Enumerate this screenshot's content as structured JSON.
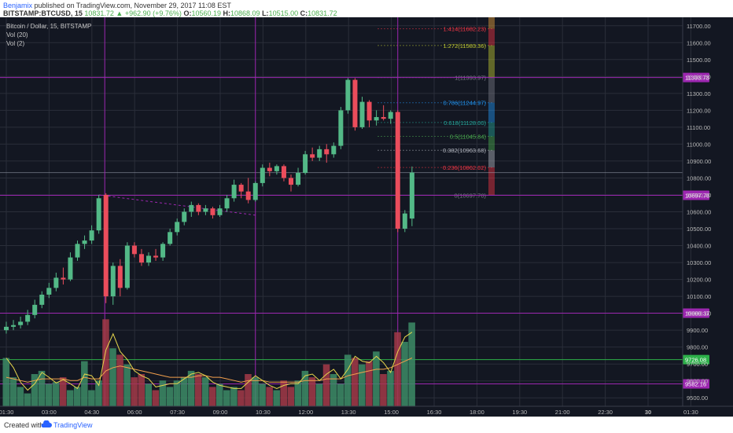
{
  "header": {
    "author": "Benjamix",
    "published": "published on TradingView.com, November 29, 2017 11:08 EST",
    "symbol": "BITSTAMP:BTCUSD, 15",
    "last": "10831.72",
    "change": "+962.90 (+9.76%)",
    "o_label": "O:",
    "o": "10560.19",
    "h_label": "H:",
    "h": "10868.09",
    "l_label": "L:",
    "l": "10515.00",
    "c_label": "C:",
    "c": "10831.72"
  },
  "legend": {
    "title": "Bitcoin / Dollar, 15, BITSTAMP",
    "vol20": "Vol (20)",
    "vol2": "Vol (2)"
  },
  "footer": {
    "created": "Created with",
    "brand": "TradingView"
  },
  "colors": {
    "background": "#131722",
    "grid": "#2a2e39",
    "up": "#53b987",
    "down": "#eb4d5c",
    "volume_up": "#3d8c66",
    "volume_down": "#a33a48",
    "purple": "#9c27b0",
    "vol_ma_yellow": "#e6d64c",
    "vol_ma_orange": "#f29f4c",
    "green_line": "#2db04a"
  },
  "chart_data": {
    "type": "candlestick",
    "price_axis": {
      "min": 9450,
      "max": 11750,
      "ticks": [
        "11700.00",
        "11600.00",
        "11500.00",
        "11400.00",
        "11300.00",
        "11200.00",
        "11100.00",
        "11000.00",
        "10900.00",
        "10800.00",
        "10700.00",
        "10600.00",
        "10500.00",
        "10400.00",
        "10300.00",
        "10200.00",
        "10100.00",
        "10000.00",
        "9900.00",
        "9800.00",
        "9700.00",
        "9600.00",
        "9500.00"
      ]
    },
    "time_axis": {
      "ticks": [
        "01:30",
        "03:00",
        "04:30",
        "06:00",
        "07:30",
        "09:00",
        "10:30",
        "12:00",
        "13:30",
        "15:00",
        "16:30",
        "18:00",
        "19:30",
        "21:00",
        "22:30",
        "30",
        "01:30"
      ]
    },
    "candles": [
      {
        "o": 9900,
        "h": 9950,
        "l": 9880,
        "c": 9920
      },
      {
        "o": 9920,
        "h": 9960,
        "l": 9900,
        "c": 9930
      },
      {
        "o": 9930,
        "h": 9980,
        "l": 9910,
        "c": 9950
      },
      {
        "o": 9950,
        "h": 10020,
        "l": 9930,
        "c": 9990
      },
      {
        "o": 9990,
        "h": 10080,
        "l": 9970,
        "c": 10050
      },
      {
        "o": 10050,
        "h": 10130,
        "l": 10030,
        "c": 10110
      },
      {
        "o": 10110,
        "h": 10180,
        "l": 10090,
        "c": 10150
      },
      {
        "o": 10150,
        "h": 10240,
        "l": 10130,
        "c": 10210
      },
      {
        "o": 10210,
        "h": 10270,
        "l": 10170,
        "c": 10200
      },
      {
        "o": 10200,
        "h": 10360,
        "l": 10190,
        "c": 10330
      },
      {
        "o": 10330,
        "h": 10430,
        "l": 10310,
        "c": 10410
      },
      {
        "o": 10410,
        "h": 10460,
        "l": 10380,
        "c": 10430
      },
      {
        "o": 10430,
        "h": 10520,
        "l": 10410,
        "c": 10490
      },
      {
        "o": 10490,
        "h": 10700,
        "l": 10470,
        "c": 10680
      },
      {
        "o": 10700,
        "h": 10710,
        "l": 10060,
        "c": 10100
      },
      {
        "o": 10100,
        "h": 10300,
        "l": 10050,
        "c": 10280
      },
      {
        "o": 10280,
        "h": 10320,
        "l": 10100,
        "c": 10150
      },
      {
        "o": 10150,
        "h": 10420,
        "l": 10140,
        "c": 10400
      },
      {
        "o": 10400,
        "h": 10420,
        "l": 10330,
        "c": 10350
      },
      {
        "o": 10350,
        "h": 10380,
        "l": 10280,
        "c": 10300
      },
      {
        "o": 10300,
        "h": 10360,
        "l": 10280,
        "c": 10340
      },
      {
        "o": 10340,
        "h": 10380,
        "l": 10310,
        "c": 10330
      },
      {
        "o": 10330,
        "h": 10420,
        "l": 10310,
        "c": 10410
      },
      {
        "o": 10410,
        "h": 10500,
        "l": 10400,
        "c": 10480
      },
      {
        "o": 10480,
        "h": 10560,
        "l": 10460,
        "c": 10540
      },
      {
        "o": 10540,
        "h": 10620,
        "l": 10520,
        "c": 10600
      },
      {
        "o": 10600,
        "h": 10660,
        "l": 10570,
        "c": 10640
      },
      {
        "o": 10640,
        "h": 10650,
        "l": 10580,
        "c": 10600
      },
      {
        "o": 10600,
        "h": 10640,
        "l": 10580,
        "c": 10620
      },
      {
        "o": 10620,
        "h": 10630,
        "l": 10560,
        "c": 10580
      },
      {
        "o": 10580,
        "h": 10640,
        "l": 10570,
        "c": 10620
      },
      {
        "o": 10620,
        "h": 10700,
        "l": 10600,
        "c": 10680
      },
      {
        "o": 10680,
        "h": 10790,
        "l": 10660,
        "c": 10760
      },
      {
        "o": 10760,
        "h": 10770,
        "l": 10680,
        "c": 10720
      },
      {
        "o": 10720,
        "h": 10800,
        "l": 10650,
        "c": 10670
      },
      {
        "o": 10670,
        "h": 10780,
        "l": 10660,
        "c": 10770
      },
      {
        "o": 10770,
        "h": 10880,
        "l": 10750,
        "c": 10860
      },
      {
        "o": 10860,
        "h": 10890,
        "l": 10810,
        "c": 10840
      },
      {
        "o": 10840,
        "h": 10880,
        "l": 10820,
        "c": 10870
      },
      {
        "o": 10870,
        "h": 10880,
        "l": 10780,
        "c": 10800
      },
      {
        "o": 10800,
        "h": 10820,
        "l": 10720,
        "c": 10760
      },
      {
        "o": 10760,
        "h": 10860,
        "l": 10750,
        "c": 10830
      },
      {
        "o": 10830,
        "h": 10960,
        "l": 10820,
        "c": 10940
      },
      {
        "o": 10940,
        "h": 10980,
        "l": 10900,
        "c": 10920
      },
      {
        "o": 10920,
        "h": 10990,
        "l": 10900,
        "c": 10970
      },
      {
        "o": 10970,
        "h": 11000,
        "l": 10890,
        "c": 10940
      },
      {
        "o": 10940,
        "h": 11010,
        "l": 10920,
        "c": 10990
      },
      {
        "o": 10990,
        "h": 11220,
        "l": 10970,
        "c": 11200
      },
      {
        "o": 11200,
        "h": 11390,
        "l": 11180,
        "c": 11380
      },
      {
        "o": 11380,
        "h": 11390,
        "l": 11080,
        "c": 11100
      },
      {
        "o": 11100,
        "h": 11280,
        "l": 11090,
        "c": 11250
      },
      {
        "o": 11250,
        "h": 11260,
        "l": 11100,
        "c": 11140
      },
      {
        "o": 11140,
        "h": 11200,
        "l": 11110,
        "c": 11160
      },
      {
        "o": 11160,
        "h": 11230,
        "l": 11140,
        "c": 11150
      },
      {
        "o": 11150,
        "h": 11200,
        "l": 11120,
        "c": 11190
      },
      {
        "o": 11190,
        "h": 11200,
        "l": 10480,
        "c": 10500
      },
      {
        "o": 10500,
        "h": 10610,
        "l": 10480,
        "c": 10590
      },
      {
        "o": 10560,
        "h": 10868,
        "l": 10515,
        "c": 10832
      }
    ],
    "volume_axis": {
      "ticks": [
        "9900.00",
        "9800.00",
        "9700.00",
        "9600.00",
        "9500.00"
      ]
    },
    "volume": [
      30,
      18,
      12,
      8,
      20,
      22,
      14,
      15,
      18,
      10,
      12,
      28,
      10,
      16,
      54,
      36,
      32,
      26,
      18,
      20,
      14,
      10,
      16,
      12,
      16,
      18,
      22,
      20,
      18,
      12,
      14,
      10,
      12,
      10,
      20,
      18,
      14,
      12,
      10,
      16,
      12,
      16,
      22,
      18,
      14,
      26,
      20,
      14,
      32,
      30,
      26,
      28,
      34,
      20,
      22,
      46,
      40,
      52
    ],
    "volume_ma": [
      18,
      17,
      16,
      15,
      16,
      17,
      17,
      17,
      17,
      16,
      16,
      18,
      17,
      17,
      22,
      24,
      25,
      24,
      23,
      22,
      21,
      20,
      19,
      18,
      18,
      18,
      18,
      19,
      19,
      18,
      18,
      17,
      16,
      15,
      16,
      16,
      16,
      15,
      15,
      15,
      15,
      15,
      16,
      16,
      16,
      17,
      17,
      17,
      19,
      20,
      21,
      22,
      23,
      23,
      24,
      26,
      28,
      30
    ],
    "fibonacci": [
      {
        "ratio": "0",
        "label": "0(10697.70)",
        "price": 10697.7,
        "color": "#787b86"
      },
      {
        "ratio": "0.236",
        "label": "0.236(10862.02)",
        "price": 10862.02,
        "color": "#f23645"
      },
      {
        "ratio": "0.382",
        "label": "0.382(10963.68)",
        "price": 10963.68,
        "color": "#b2b5be"
      },
      {
        "ratio": "0.5",
        "label": "0.5(11045.84)",
        "price": 11045.84,
        "color": "#4caf50"
      },
      {
        "ratio": "0.618",
        "label": "0.618(11128.00)",
        "price": 11128.0,
        "color": "#26a69a"
      },
      {
        "ratio": "0.786",
        "label": "0.786(11244.97)",
        "price": 11244.97,
        "color": "#2196f3"
      },
      {
        "ratio": "1",
        "label": "1(11393.97)",
        "price": 11393.97,
        "color": "#787b86"
      },
      {
        "ratio": "1.272",
        "label": "1.272(11583.36)",
        "price": 11583.36,
        "color": "#c0ca33"
      },
      {
        "ratio": "1.414",
        "label": "1.414(11682.23)",
        "price": 11682.23,
        "color": "#f23645"
      }
    ],
    "h_lines": [
      {
        "price": 11393.73,
        "label": "11393.73",
        "color": "#9c27b0"
      },
      {
        "price": 10697.7,
        "label": "10697.70",
        "color": "#9c27b0"
      },
      {
        "price": 10000.37,
        "label": "10000.37",
        "color": "#9c27b0"
      },
      {
        "price": 9726.08,
        "label": "9726.08",
        "color": "#2db04a"
      },
      {
        "price": 9582.16,
        "label": "9582.16",
        "color": "#9c27b0"
      }
    ],
    "v_lines": [
      {
        "time_index": 14,
        "color": "#9c27b0"
      },
      {
        "time_index": 35,
        "color": "#9c27b0"
      },
      {
        "time_index": 55,
        "color": "#9c27b0"
      }
    ],
    "price_level_line": 10831.72
  }
}
